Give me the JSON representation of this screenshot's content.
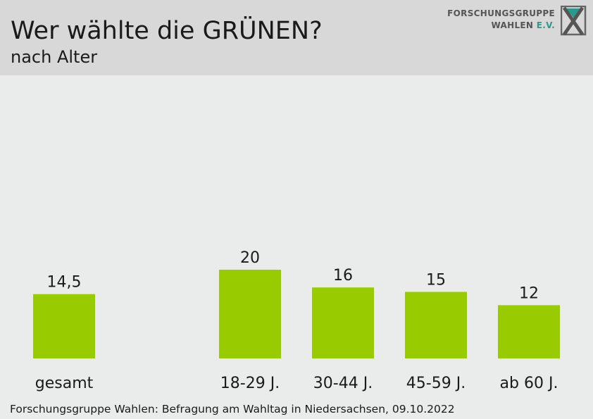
{
  "header": {
    "title": "Wer wählte die GRÜNEN?",
    "subtitle": "nach Alter",
    "logo_line1": "FORSCHUNGSGRUPPE",
    "logo_line2": "WAHLEN",
    "logo_suffix": "E.V."
  },
  "footer": {
    "source": "Forschungsgruppe Wahlen: Befragung am Wahltag in Niedersachsen, 09.10.2022"
  },
  "colors": {
    "bar": "#99cc00",
    "header_bg": "#d8d8d8",
    "plot_bg": "#e9ecea",
    "text": "#1a1a1a"
  },
  "chart_data": {
    "type": "bar",
    "title": "Wer wählte die GRÜNEN?",
    "subtitle": "nach Alter",
    "categories": [
      "gesamt",
      "18-29 J.",
      "30-44 J.",
      "45-59 J.",
      "ab 60 J."
    ],
    "values": [
      14.5,
      20,
      16,
      15,
      12
    ],
    "value_labels": [
      "14,5",
      "20",
      "16",
      "15",
      "12"
    ],
    "xlabel": "",
    "ylabel": "",
    "ylim": [
      0,
      40
    ],
    "grid": false,
    "legend": "none",
    "group_gap_after_first": true
  }
}
